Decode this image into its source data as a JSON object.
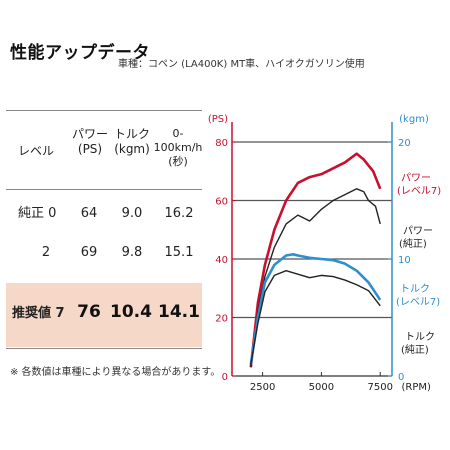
{
  "title": "性能アップデータ",
  "subtitle": "車種：コペン (LA400K) MT車、ハイオクガソリン使用",
  "table": {
    "headers": {
      "level": "レベル",
      "power": "パワー",
      "power_unit": "(PS)",
      "torque": "トルク",
      "torque_unit": "(kgm)",
      "accel": "0-100km/h",
      "accel_unit": "(秒)"
    },
    "rows": [
      {
        "level": "純正 0",
        "power": "64",
        "torque": "9.0",
        "accel": "16.2"
      },
      {
        "level": "2",
        "power": "69",
        "torque": "9.8",
        "accel": "15.1"
      },
      {
        "level": "推奨値 7",
        "power": "76",
        "torque": "10.4",
        "accel": "14.1"
      }
    ]
  },
  "note": "※ 各数値は車種により異なる場合があります。",
  "colors": {
    "power_tuned": "#c8102e",
    "torque_tuned": "#2d8fd0",
    "stock": "#222222",
    "left_axis": "#c8102e",
    "right_axis": "#2d8fd0",
    "highlight_row": "#f6d8c8"
  },
  "chart_data": {
    "type": "line",
    "xlabel": "(RPM)",
    "x_ticks": [
      2500,
      5000,
      7500
    ],
    "xlim": [
      1200,
      8000
    ],
    "y_left_label": "(PS)",
    "y_left_ticks": [
      0,
      20,
      40,
      60,
      80
    ],
    "ylim_left": [
      0,
      80
    ],
    "y_right_label": "(kgm)",
    "y_right_ticks": [
      0,
      10,
      20
    ],
    "ylim_right": [
      0,
      20
    ],
    "grid": "horizontal",
    "series": [
      {
        "name": "パワー (レベル7)",
        "label_line1": "パワー",
        "label_line2": "(レベル7)",
        "axis": "left",
        "color_key": "power_tuned",
        "x": [
          2000,
          2300,
          2600,
          3000,
          3500,
          4000,
          4500,
          5000,
          5500,
          6000,
          6500,
          6800,
          7000,
          7200,
          7500
        ],
        "y": [
          3,
          25,
          38,
          50,
          60,
          66,
          68,
          69,
          71,
          73,
          76,
          74,
          72,
          70,
          64
        ]
      },
      {
        "name": "パワー (純正)",
        "label_line1": "パワー",
        "label_line2": "(純正)",
        "axis": "left",
        "color_key": "stock",
        "x": [
          2000,
          2300,
          2600,
          3000,
          3500,
          4000,
          4500,
          5000,
          5500,
          6000,
          6500,
          6800,
          7000,
          7300,
          7500
        ],
        "y": [
          3,
          22,
          34,
          44,
          52,
          55,
          53,
          57,
          60,
          62,
          64,
          63,
          60,
          58,
          52
        ]
      },
      {
        "name": "トルク (レベル7)",
        "label_line1": "トルク",
        "label_line2": "(レベル7)",
        "axis": "right",
        "color_key": "torque_tuned",
        "x": [
          2000,
          2300,
          2600,
          3000,
          3500,
          3800,
          4000,
          4500,
          5000,
          5500,
          6000,
          6500,
          7000,
          7500
        ],
        "y": [
          1,
          5,
          8,
          9.5,
          10.3,
          10.4,
          10.3,
          10.1,
          10.0,
          9.9,
          9.6,
          9.0,
          8.0,
          6.5
        ]
      },
      {
        "name": "トルク (純正)",
        "label_line1": "トルク",
        "label_line2": "(純正)",
        "axis": "right",
        "color_key": "stock",
        "x": [
          2000,
          2300,
          2600,
          3000,
          3500,
          4000,
          4500,
          5000,
          5500,
          6000,
          6500,
          7000,
          7500
        ],
        "y": [
          1,
          4.5,
          7.2,
          8.6,
          9.0,
          8.7,
          8.4,
          8.6,
          8.5,
          8.2,
          7.8,
          7.3,
          6.0
        ]
      }
    ]
  }
}
